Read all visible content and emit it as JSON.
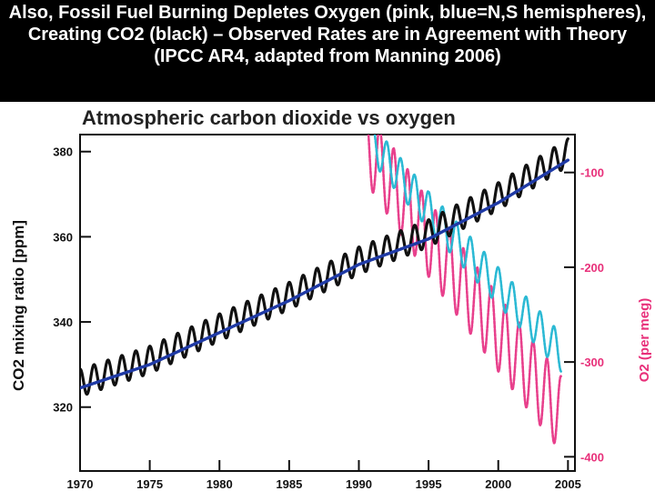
{
  "slide": {
    "title": "Also, Fossil Fuel Burning Depletes Oxygen (pink, blue=N,S hemispheres), Creating CO2 (black) – Observed Rates are in Agreement with Theory (IPCC AR4, adapted from Manning 2006)"
  },
  "chart_data": {
    "type": "line",
    "title": "Atmospheric carbon dioxide vs oxygen",
    "xlabel": "",
    "ylabel": "CO2 mixing ratio [ppm]",
    "y2label": "O2 (per meg)",
    "xlim": [
      1970,
      2005.5
    ],
    "ylim": [
      305,
      384
    ],
    "y2lim": [
      -415,
      -60
    ],
    "x_ticks": [
      1970,
      1975,
      1980,
      1985,
      1990,
      1995,
      2000,
      2005
    ],
    "y_ticks": [
      320,
      340,
      360,
      380
    ],
    "y2_ticks": [
      -100,
      -200,
      -300,
      -400
    ],
    "grid": false,
    "colors": {
      "co2_monthly": "#111111",
      "co2_trend": "#1f3aa6",
      "o2_north": "#e8408c",
      "o2_south": "#2bb9d4",
      "right_axis": "#e8307a"
    },
    "series": [
      {
        "role": "co2_monthly",
        "axis": "left",
        "x": [
          1970,
          1975,
          1980,
          1985,
          1990,
          1995,
          2000,
          2005
        ],
        "y": [
          325.7,
          331.1,
          338.7,
          346.1,
          354.4,
          360.8,
          369.5,
          379.8
        ],
        "seasonal_amplitude": 3.2
      },
      {
        "role": "co2_trend",
        "axis": "left",
        "x": [
          1970,
          1975,
          1980,
          1985,
          1990,
          1995,
          2000,
          2005
        ],
        "y": [
          324.5,
          330,
          337.5,
          345,
          353.5,
          359.5,
          368,
          378
        ]
      },
      {
        "role": "o2_north",
        "axis": "right",
        "x": [
          1990.5,
          1995,
          2000,
          2004.5
        ],
        "y": [
          -70,
          -170,
          -270,
          -355
        ],
        "seasonal_amplitude": 40
      },
      {
        "role": "o2_south",
        "axis": "right",
        "x": [
          1991,
          1995,
          2000,
          2004.5
        ],
        "y": [
          -70,
          -140,
          -220,
          -290
        ],
        "seasonal_amplitude": 20
      }
    ]
  }
}
